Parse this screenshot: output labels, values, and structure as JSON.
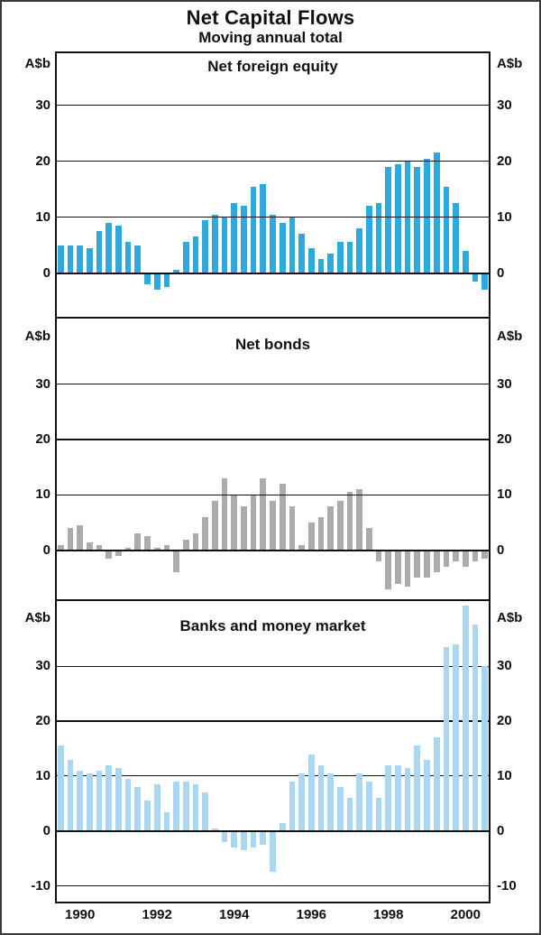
{
  "title": "Net Capital Flows",
  "subtitle": "Moving annual total",
  "chart_data": {
    "type": "bar",
    "title": "Net Capital Flows",
    "subtitle": "Moving annual total",
    "x_axis": {
      "unit": "quarter",
      "tick_labels": [
        "1990",
        "1992",
        "1994",
        "1996",
        "1998",
        "2000"
      ]
    },
    "categories": [
      "1989Q4",
      "1990Q1",
      "1990Q2",
      "1990Q3",
      "1990Q4",
      "1991Q1",
      "1991Q2",
      "1991Q3",
      "1991Q4",
      "1992Q1",
      "1992Q2",
      "1992Q3",
      "1992Q4",
      "1993Q1",
      "1993Q2",
      "1993Q3",
      "1993Q4",
      "1994Q1",
      "1994Q2",
      "1994Q3",
      "1994Q4",
      "1995Q1",
      "1995Q2",
      "1995Q3",
      "1995Q4",
      "1996Q1",
      "1996Q2",
      "1996Q3",
      "1996Q4",
      "1997Q1",
      "1997Q2",
      "1997Q3",
      "1997Q4",
      "1998Q1",
      "1998Q2",
      "1998Q3",
      "1998Q4",
      "1999Q1",
      "1999Q2",
      "1999Q3",
      "1999Q4",
      "2000Q1",
      "2000Q2",
      "2000Q3",
      "2000Q4"
    ],
    "panels": [
      {
        "title": "Net foreign equity",
        "unit": "A$b",
        "bar_color": "#2CA9DE",
        "ylim": [
          -8,
          39.5
        ],
        "gridlines": [
          0,
          10,
          20,
          30
        ],
        "ytick_labels": [
          "0",
          "10",
          "20",
          "30"
        ],
        "values": [
          5,
          5,
          5,
          4.5,
          7.5,
          9,
          8.5,
          5.5,
          5,
          -2,
          -3,
          -2.5,
          0.5,
          5.5,
          6.5,
          9.5,
          10.5,
          10,
          12.5,
          12,
          15.5,
          16,
          10.5,
          9,
          10,
          7,
          4.5,
          2.5,
          3.5,
          5.5,
          5.5,
          8,
          12,
          12.5,
          19,
          19.5,
          20,
          19,
          20.5,
          21.5,
          15.5,
          12.5,
          4,
          -1.5,
          -3
        ]
      },
      {
        "title": "Net bonds",
        "unit": "A$b",
        "bar_color": "#ABABAB",
        "ylim": [
          -9,
          42
        ],
        "gridlines": [
          0,
          10,
          20,
          30
        ],
        "ytick_labels": [
          "0",
          "10",
          "20",
          "30"
        ],
        "values": [
          1,
          4,
          4.5,
          1.5,
          1,
          -1.5,
          -1,
          0.5,
          3,
          2.5,
          0.5,
          1,
          -4,
          2,
          3,
          6,
          9,
          13,
          10,
          8,
          10,
          13,
          9,
          12,
          8,
          1,
          5,
          6,
          8,
          9,
          10.5,
          11,
          4,
          -2,
          -7,
          -6,
          -6.5,
          -5,
          -5,
          -4,
          -3,
          -2,
          -3,
          -2,
          -1.5
        ]
      },
      {
        "title": "Banks and money market",
        "unit": "A$b",
        "bar_color": "#A9D7F1",
        "ylim": [
          -13,
          42
        ],
        "gridlines": [
          -10,
          0,
          10,
          20,
          30
        ],
        "ytick_labels": [
          "-10",
          "0",
          "10",
          "20",
          "30"
        ],
        "values": [
          15.5,
          13,
          11,
          10.5,
          11,
          12,
          11.5,
          9.5,
          8,
          5.5,
          8.5,
          3.5,
          9,
          9,
          8.5,
          7,
          0.5,
          -2,
          -3,
          -3.5,
          -3,
          -2.5,
          -7.5,
          1.5,
          9,
          10.5,
          14,
          12,
          10.5,
          8,
          6,
          10.5,
          9,
          6,
          12,
          12,
          11.5,
          15.5,
          13,
          17,
          33.5,
          34,
          41,
          37.5,
          30
        ]
      }
    ]
  }
}
